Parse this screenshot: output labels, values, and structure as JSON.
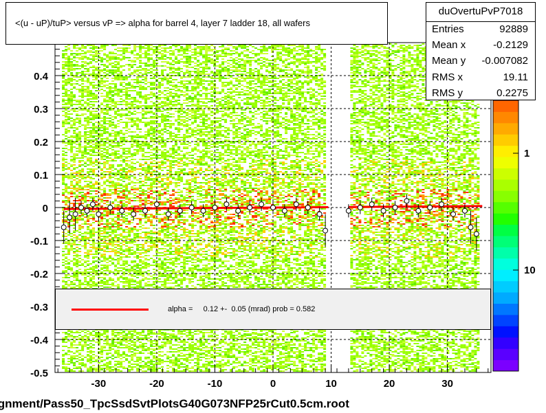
{
  "title": "<(u - uP)/tuP> versus   vP => alpha for barrel 4, layer 7 ladder 18, all wafers",
  "stats": {
    "name": "duOvertuPvP7018",
    "rows": [
      {
        "label": "Entries",
        "value": "92889"
      },
      {
        "label": "Mean x",
        "value": "-0.2129"
      },
      {
        "label": "Mean y",
        "value": "-0.007082"
      },
      {
        "label": "RMS x",
        "value": "19.11"
      },
      {
        "label": "RMS y",
        "value": "0.2275"
      }
    ]
  },
  "legend": {
    "line_color": "#ff0000",
    "text": "alpha =     0.12 +-  0.05 (mrad) prob = 0.582"
  },
  "footer": "ignment/Pass50_TpcSsdSvtPlotsG40G073NFP25rCut0.5cm.root",
  "chart_data": {
    "type": "scatter",
    "title": "<(u - uP)/tuP> versus   vP => alpha for barrel 4, layer 7 ladder 18, all wafers",
    "xlim": [
      -37.5,
      37.5
    ],
    "ylim": [
      -0.5,
      0.5
    ],
    "x_ticks": [
      -30,
      -20,
      -10,
      0,
      10,
      20,
      30
    ],
    "x_tick_labels": [
      "-30",
      "-20",
      "-10",
      "0",
      "10",
      "20",
      "30"
    ],
    "y_ticks": [
      -0.5,
      -0.4,
      -0.3,
      -0.2,
      -0.1,
      0,
      0.1,
      0.2,
      0.3,
      0.4
    ],
    "y_tick_labels": [
      "-0.5",
      "-0.4",
      "-0.3",
      "-0.2",
      "-0.1",
      "0",
      "0.1",
      "0.2",
      "0.3",
      "0.4"
    ],
    "grid": true,
    "colorbar_labels": [
      "1",
      "10"
    ],
    "profile_x": [
      -36,
      -35,
      -34,
      -33,
      -32,
      -31,
      -30,
      -28,
      -26,
      -24,
      -22,
      -20,
      -18,
      -16,
      -14,
      -12,
      -10,
      -8,
      -6,
      -4,
      -2,
      0,
      2,
      4,
      6,
      8,
      9,
      13,
      15,
      17,
      19,
      21,
      23,
      25,
      27,
      29,
      31,
      33,
      34,
      35
    ],
    "profile_y": [
      -0.06,
      -0.03,
      -0.02,
      0.0,
      -0.01,
      0.01,
      -0.02,
      0.0,
      -0.01,
      -0.02,
      -0.01,
      0.01,
      -0.02,
      -0.01,
      0.0,
      -0.01,
      0.0,
      0.01,
      -0.01,
      0.0,
      0.01,
      0.0,
      -0.01,
      0.01,
      0.0,
      -0.02,
      -0.07,
      -0.01,
      0.0,
      0.01,
      -0.01,
      0.0,
      0.02,
      -0.01,
      0.0,
      0.01,
      -0.02,
      -0.01,
      -0.06,
      -0.08
    ],
    "fit": {
      "name": "alpha",
      "value_mrad": 0.12,
      "error_mrad": 0.05,
      "prob": 0.582,
      "segments": [
        [
          -36,
          9.5
        ],
        [
          13,
          36
        ]
      ]
    }
  }
}
